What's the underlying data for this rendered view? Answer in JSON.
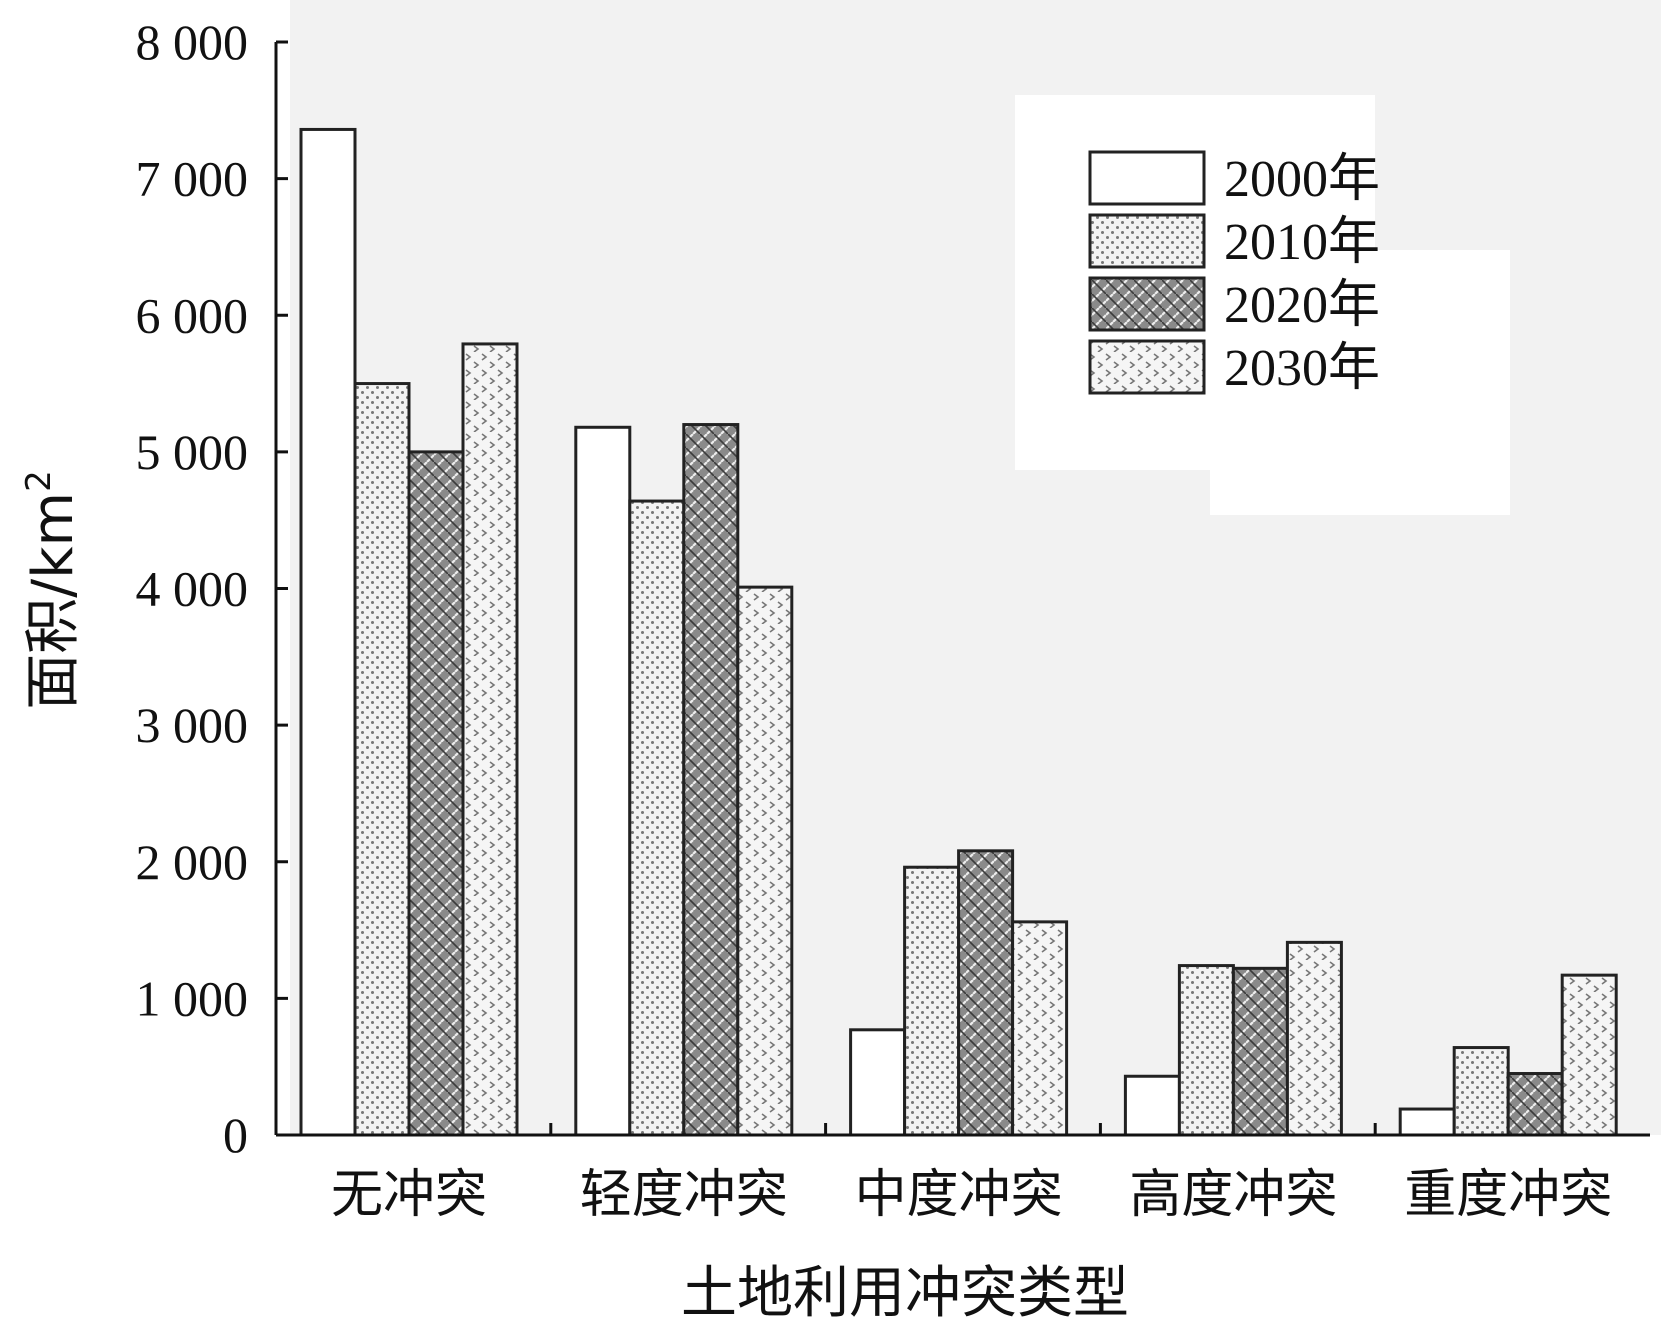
{
  "chart_data": {
    "type": "bar",
    "xlabel": "土地利用冲突类型",
    "ylabel": "面积/km²",
    "ylim": [
      0,
      8000
    ],
    "yticks": [
      0,
      1000,
      2000,
      3000,
      4000,
      5000,
      6000,
      7000,
      8000
    ],
    "ytick_labels": [
      "0",
      "1 000",
      "2 000",
      "3 000",
      "4 000",
      "5 000",
      "6 000",
      "7 000",
      "8 000"
    ],
    "categories": [
      "无冲突",
      "轻度冲突",
      "中度冲突",
      "高度冲突",
      "重度冲突"
    ],
    "series": [
      {
        "name": "2000年",
        "pattern": "none",
        "values": [
          7360,
          5180,
          770,
          430,
          190
        ]
      },
      {
        "name": "2010年",
        "pattern": "dots",
        "values": [
          5500,
          4640,
          1960,
          1240,
          640
        ]
      },
      {
        "name": "2020年",
        "pattern": "weave",
        "values": [
          5000,
          5200,
          2080,
          1220,
          450
        ]
      },
      {
        "name": "2030年",
        "pattern": "chevron",
        "values": [
          5790,
          4010,
          1560,
          1410,
          1170
        ]
      }
    ],
    "legend_position": "top-right",
    "grid": false,
    "colors": {
      "background": "#f2f2f2",
      "bar_fill": "#ffffff",
      "stroke": "#222222"
    }
  }
}
